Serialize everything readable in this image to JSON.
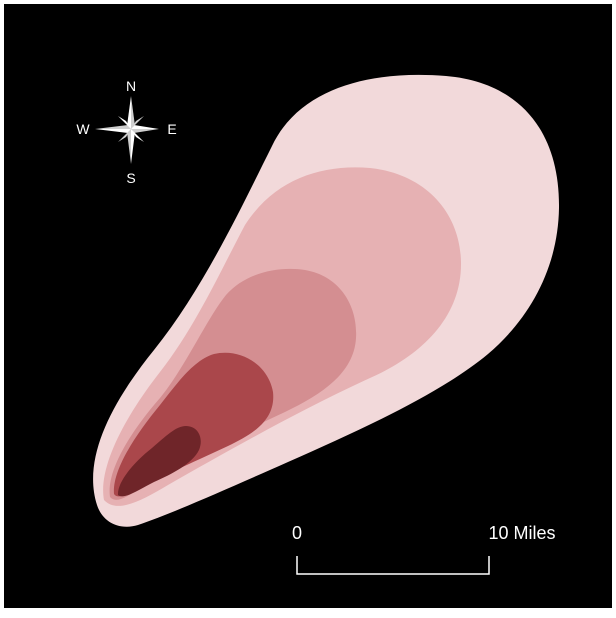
{
  "map": {
    "background_color": "#000000",
    "compass": {
      "north": "N",
      "south": "S",
      "east": "E",
      "west": "W"
    },
    "scale_bar": {
      "start_label": "0",
      "end_label": "10 Miles"
    },
    "plume_zones": [
      {
        "zone": "outermost",
        "color": "#f2d9da"
      },
      {
        "zone": "outer",
        "color": "#e6b1b3"
      },
      {
        "zone": "middle",
        "color": "#d48e91"
      },
      {
        "zone": "inner",
        "color": "#aa474b"
      },
      {
        "zone": "innermost",
        "color": "#6f2529"
      }
    ]
  }
}
